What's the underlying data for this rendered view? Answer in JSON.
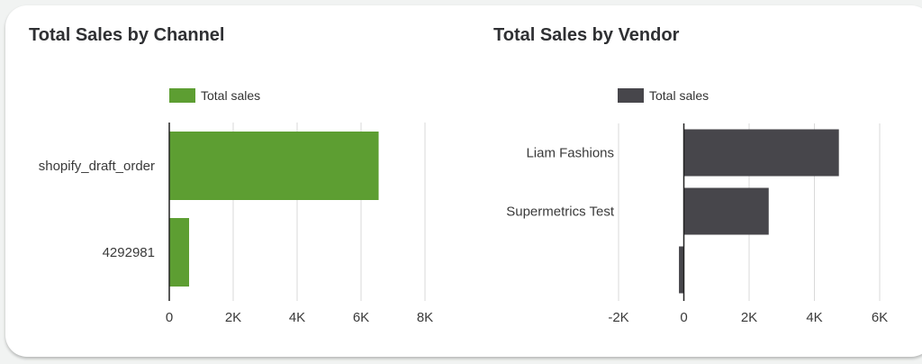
{
  "chart_data": [
    {
      "type": "bar",
      "orientation": "horizontal",
      "title": "Total Sales by Channel",
      "categories": [
        "shopify_draft_order",
        "4292981"
      ],
      "series": [
        {
          "name": "Total sales",
          "values": [
            6550,
            620
          ]
        }
      ],
      "xlim": [
        0,
        8000
      ],
      "ticks": [
        0,
        2000,
        4000,
        6000,
        8000
      ],
      "tick_labels": [
        "0",
        "2K",
        "4K",
        "6K",
        "8K"
      ],
      "color": "#5d9e32",
      "legend": "top",
      "grid": true
    },
    {
      "type": "bar",
      "orientation": "horizontal",
      "title": "Total Sales by Vendor",
      "categories": [
        "Liam Fashions",
        "Supermetrics Test",
        ""
      ],
      "series": [
        {
          "name": "Total sales",
          "values": [
            4750,
            2600,
            -150
          ]
        }
      ],
      "xlim": [
        -2000,
        6000
      ],
      "ticks": [
        -2000,
        0,
        2000,
        4000,
        6000
      ],
      "tick_labels": [
        "-2K",
        "0",
        "2K",
        "4K",
        "6K"
      ],
      "color": "#47464b",
      "legend": "top",
      "grid": true
    }
  ]
}
